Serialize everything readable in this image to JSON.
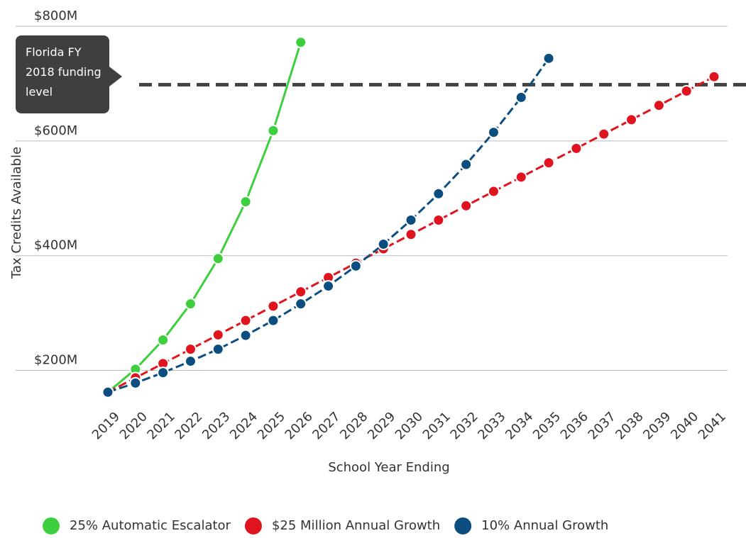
{
  "chart_data": {
    "type": "line",
    "categories": [
      "2019",
      "2020",
      "2021",
      "2022",
      "2023",
      "2024",
      "2025",
      "2026",
      "2027",
      "2028",
      "2029",
      "2030",
      "2031",
      "2032",
      "2033",
      "2034",
      "2035",
      "2036",
      "2037",
      "2038",
      "2039",
      "2040",
      "2041"
    ],
    "series": [
      {
        "name": "25% Automatic Escalator",
        "color": "#3ecf3e",
        "dashed": false,
        "values": [
          162,
          202,
          253,
          316,
          395,
          494,
          618,
          772,
          null,
          null,
          null,
          null,
          null,
          null,
          null,
          null,
          null,
          null,
          null,
          null,
          null,
          null,
          null
        ]
      },
      {
        "name": "$25 Million Annual Growth",
        "color": "#e0141e",
        "dashed": true,
        "values": [
          162,
          187,
          212,
          237,
          262,
          287,
          312,
          337,
          362,
          387,
          412,
          437,
          462,
          487,
          512,
          537,
          562,
          587,
          612,
          637,
          662,
          687,
          712
        ]
      },
      {
        "name": "10% Annual Growth",
        "color": "#0d4e80",
        "dashed": true,
        "values": [
          162,
          178,
          196,
          216,
          237,
          261,
          287,
          316,
          347,
          382,
          420,
          462,
          508,
          559,
          615,
          676,
          744,
          null,
          null,
          null,
          null,
          null,
          null
        ]
      }
    ],
    "xlabel": "School Year Ending",
    "ylabel": "Tax Credits Available",
    "ylim": [
      150,
      800
    ],
    "yticks": [
      {
        "value": 200,
        "label": "$200M"
      },
      {
        "value": 400,
        "label": "$400M"
      },
      {
        "value": 600,
        "label": "$600M"
      },
      {
        "value": 800,
        "label": "$800M"
      }
    ],
    "grid": true,
    "reference_line": {
      "value": 698,
      "label": "Florida FY 2018 funding level"
    },
    "legend": "bottom"
  }
}
